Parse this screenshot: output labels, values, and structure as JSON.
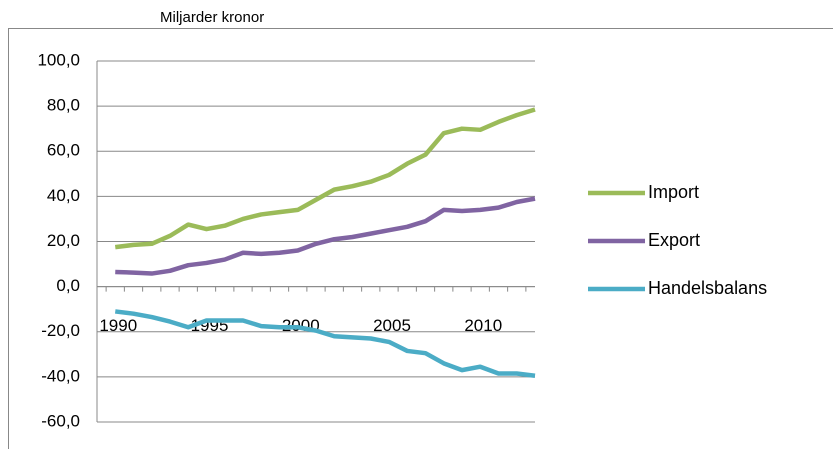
{
  "chart_data": {
    "type": "line",
    "y_axis_label": "Miljarder kronor",
    "categories": [
      "1990",
      null,
      null,
      null,
      null,
      "1995",
      null,
      null,
      null,
      null,
      "2000",
      null,
      null,
      null,
      null,
      "2005",
      null,
      null,
      null,
      null,
      "2010",
      null,
      null,
      null
    ],
    "series": [
      {
        "name": "Import",
        "color": "#9bbb59",
        "values": [
          17.5,
          18.5,
          19,
          22.5,
          27.5,
          25.5,
          27,
          30,
          32,
          33,
          34,
          38.5,
          43,
          44.5,
          46.5,
          49.5,
          54.5,
          58.5,
          68,
          70,
          69.5,
          73,
          76,
          78.5
        ]
      },
      {
        "name": "Export",
        "color": "#8064a2",
        "values": [
          6.5,
          6.2,
          5.8,
          7,
          9.5,
          10.5,
          12,
          15,
          14.5,
          15,
          16,
          19,
          21,
          22,
          23.5,
          25,
          26.5,
          29,
          34,
          33.5,
          34,
          35,
          37.5,
          39
        ]
      },
      {
        "name": "Handelsbalans",
        "color": "#4bacc6",
        "values": [
          -11,
          -12,
          -13.5,
          -15.5,
          -18,
          -15,
          -15,
          -15,
          -17.5,
          -18,
          -18,
          -19.5,
          -22,
          -22.5,
          -23,
          -24.5,
          -28.5,
          -29.5,
          -34,
          -37,
          -35.5,
          -38.5,
          -38.5,
          -39.5
        ]
      }
    ],
    "ylim": [
      -60,
      100
    ],
    "yticks": [
      {
        "value": -60,
        "label": "-60,0"
      },
      {
        "value": -40,
        "label": "-40,0"
      },
      {
        "value": -20,
        "label": "-20,0"
      },
      {
        "value": 0,
        "label": "0,0"
      },
      {
        "value": 20,
        "label": "20,0"
      },
      {
        "value": 40,
        "label": "40,0"
      },
      {
        "value": 60,
        "label": "60,0"
      },
      {
        "value": 80,
        "label": "80,0"
      },
      {
        "value": 100,
        "label": "100,0"
      }
    ],
    "grid": true,
    "legend": "right"
  }
}
